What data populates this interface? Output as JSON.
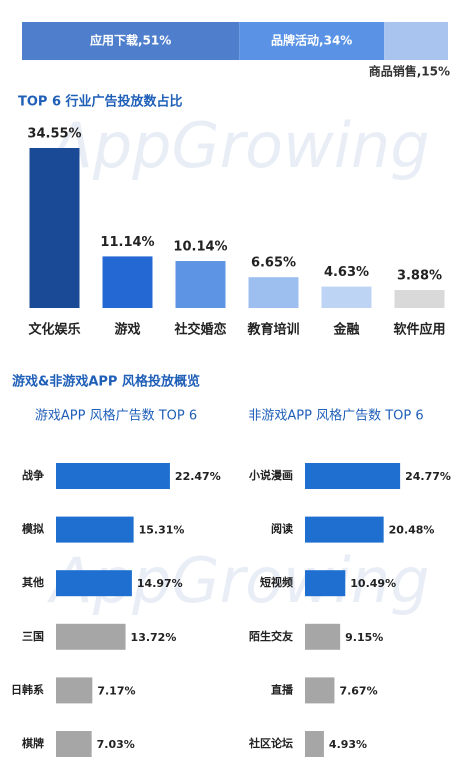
{
  "watermark": "AppGrowing",
  "section_title": "游戏&非游戏APP 风格投放概览",
  "chart_data": [
    {
      "type": "stacked_bar",
      "values": [
        51,
        34,
        15
      ],
      "value_labels": [
        "应用下载,51%",
        "品牌活动,34%",
        "商品销售,15%"
      ],
      "colors": [
        "#4f7fcc",
        "#5a93e6",
        "#a9c4ef"
      ]
    },
    {
      "type": "bar",
      "title": "TOP 6 行业广告投放数占比",
      "categories": [
        "文化娱乐",
        "游戏",
        "社交婚恋",
        "教育培训",
        "金融",
        "软件应用"
      ],
      "values": [
        34.55,
        11.14,
        10.14,
        6.65,
        4.63,
        3.88
      ],
      "value_labels": [
        "34.55%",
        "11.14%",
        "10.14%",
        "6.65%",
        "4.63%",
        "3.88%"
      ],
      "colors": [
        "#1a4a96",
        "#2468d4",
        "#5d95e4",
        "#9dbff0",
        "#bed4f5",
        "#d9d9d9"
      ]
    },
    {
      "type": "hbar",
      "title": "游戏APP 风格广告数 TOP 6",
      "categories": [
        "战争",
        "模拟",
        "其他",
        "三国",
        "日韩系",
        "棋牌"
      ],
      "values": [
        22.47,
        15.31,
        14.97,
        13.72,
        7.17,
        7.03
      ],
      "value_labels": [
        "22.47%",
        "15.31%",
        "14.97%",
        "13.72%",
        "7.17%",
        "7.03%"
      ],
      "colors": [
        "#1e6fd0",
        "#1e6fd0",
        "#1e6fd0",
        "#a6a6a6",
        "#a6a6a6",
        "#a6a6a6"
      ]
    },
    {
      "type": "hbar",
      "title": "非游戏APP 风格广告数 TOP 6",
      "categories": [
        "小说漫画",
        "阅读",
        "短视频",
        "陌生交友",
        "直播",
        "社区论坛"
      ],
      "values": [
        24.77,
        20.48,
        10.49,
        9.15,
        7.67,
        4.93
      ],
      "value_labels": [
        "24.77%",
        "20.48%",
        "10.49%",
        "9.15%",
        "7.67%",
        "4.93%"
      ],
      "colors": [
        "#1e6fd0",
        "#1e6fd0",
        "#1e6fd0",
        "#a6a6a6",
        "#a6a6a6",
        "#a6a6a6"
      ]
    }
  ]
}
